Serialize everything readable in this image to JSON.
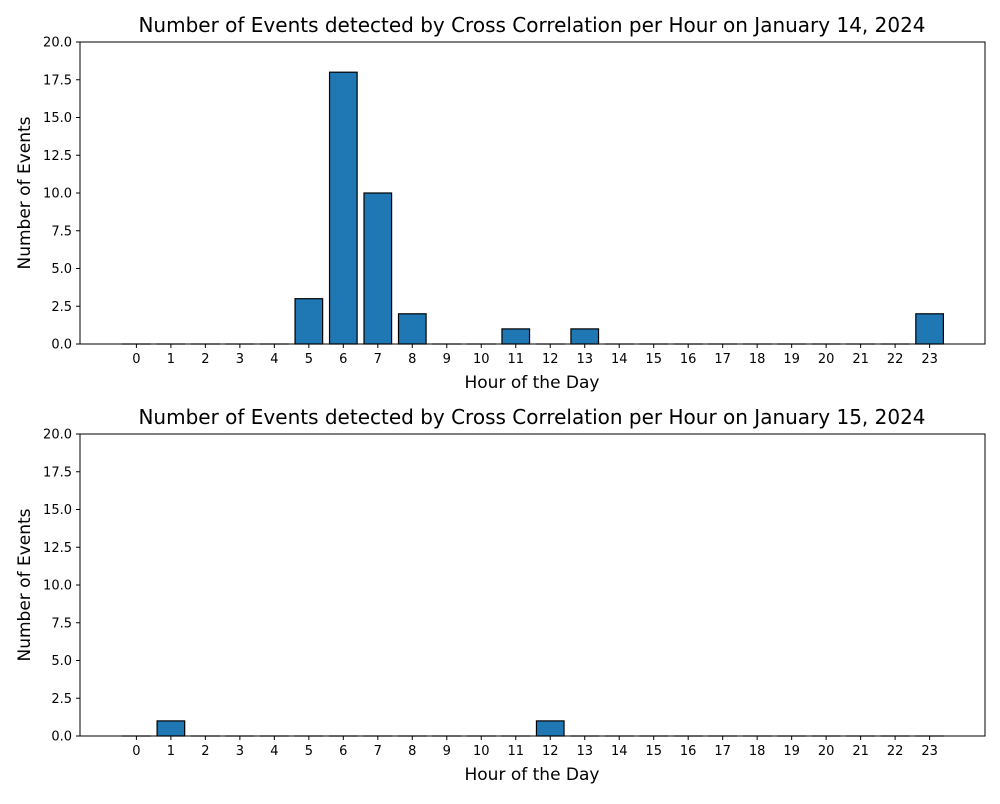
{
  "colors": {
    "bar_fill": "#1f77b4",
    "bar_edge": "#000000",
    "axes": "#000000",
    "background": "#ffffff"
  },
  "chart_data": [
    {
      "type": "bar",
      "title": "Number of Events detected by Cross Correlation per Hour on January 14, 2024",
      "xlabel": "Hour of the Day",
      "ylabel": "Number of Events",
      "categories": [
        "0",
        "1",
        "2",
        "3",
        "4",
        "5",
        "6",
        "7",
        "8",
        "9",
        "10",
        "11",
        "12",
        "13",
        "14",
        "15",
        "16",
        "17",
        "18",
        "19",
        "20",
        "21",
        "22",
        "23"
      ],
      "values": [
        0,
        0,
        0,
        0,
        0,
        3,
        18,
        10,
        2,
        0,
        0,
        1,
        0,
        1,
        0,
        0,
        0,
        0,
        0,
        0,
        0,
        0,
        0,
        2
      ],
      "ylim": [
        0,
        20
      ],
      "yticks": [
        "0.0",
        "2.5",
        "5.0",
        "7.5",
        "10.0",
        "12.5",
        "15.0",
        "17.5",
        "20.0"
      ],
      "grid": false,
      "legend": "none"
    },
    {
      "type": "bar",
      "title": "Number of Events detected by Cross Correlation per Hour on January 15, 2024",
      "xlabel": "Hour of the Day",
      "ylabel": "Number of Events",
      "categories": [
        "0",
        "1",
        "2",
        "3",
        "4",
        "5",
        "6",
        "7",
        "8",
        "9",
        "10",
        "11",
        "12",
        "13",
        "14",
        "15",
        "16",
        "17",
        "18",
        "19",
        "20",
        "21",
        "22",
        "23"
      ],
      "values": [
        0,
        1,
        0,
        0,
        0,
        0,
        0,
        0,
        0,
        0,
        0,
        0,
        1,
        0,
        0,
        0,
        0,
        0,
        0,
        0,
        0,
        0,
        0,
        0
      ],
      "ylim": [
        0,
        20
      ],
      "yticks": [
        "0.0",
        "2.5",
        "5.0",
        "7.5",
        "10.0",
        "12.5",
        "15.0",
        "17.5",
        "20.0"
      ],
      "grid": false,
      "legend": "none"
    }
  ]
}
